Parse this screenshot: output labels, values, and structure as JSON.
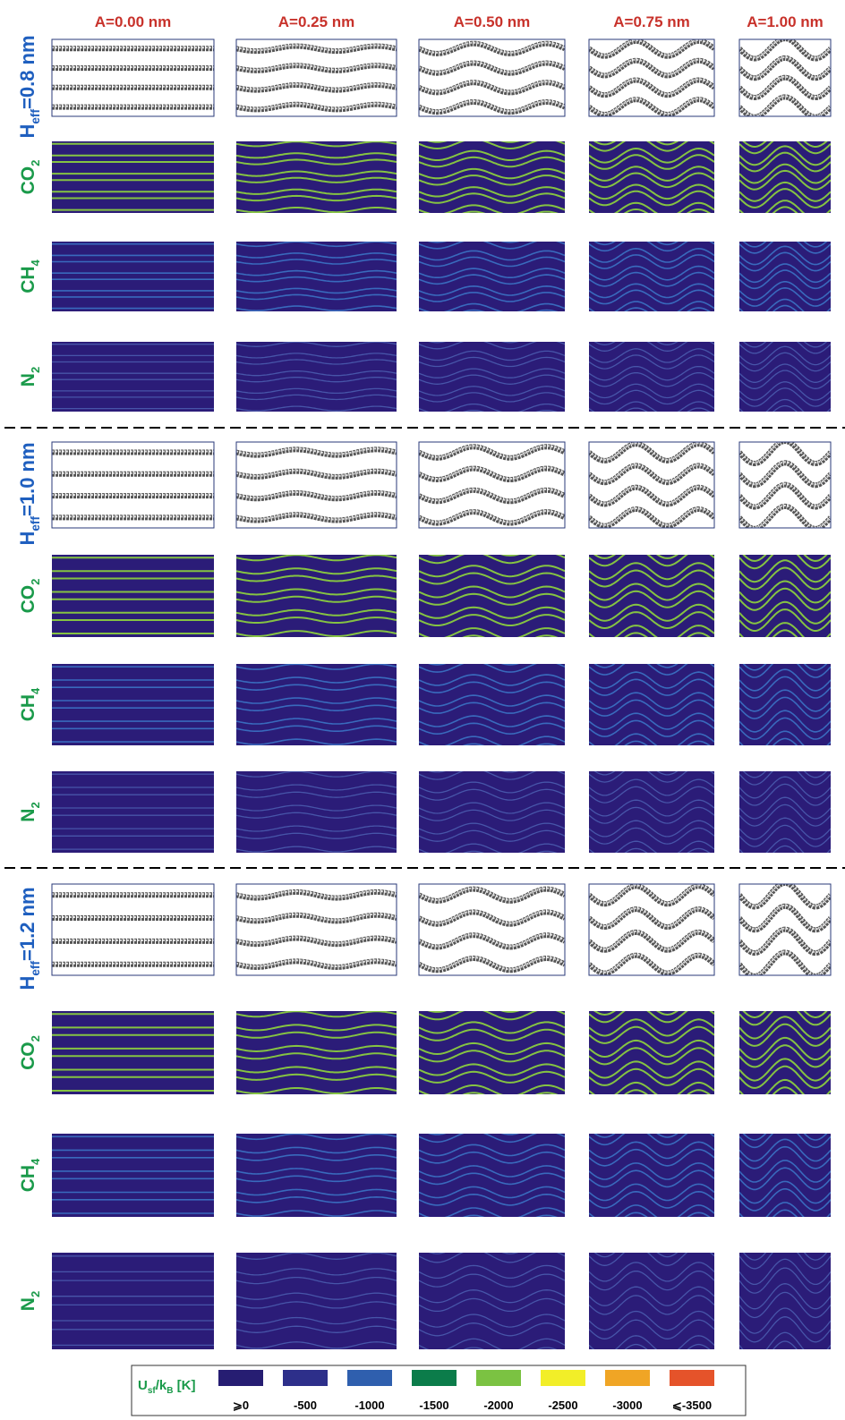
{
  "columns": [
    "A=0.00 nm",
    "A=0.25 nm",
    "A=0.50 nm",
    "A=0.75 nm",
    "A=1.00 nm"
  ],
  "groups": [
    {
      "label": {
        "main": "H",
        "sub": "eff",
        "rest": "=0.8 nm"
      },
      "rows": [
        {
          "main": "CO",
          "sub": "2"
        },
        {
          "main": "CH",
          "sub": "4"
        },
        {
          "main": "N",
          "sub": "2"
        }
      ]
    },
    {
      "label": {
        "main": "H",
        "sub": "eff",
        "rest": "=1.0 nm"
      },
      "rows": [
        {
          "main": "CO",
          "sub": "2"
        },
        {
          "main": "CH",
          "sub": "4"
        },
        {
          "main": "N",
          "sub": "2"
        }
      ]
    },
    {
      "label": {
        "main": "H",
        "sub": "eff",
        "rest": "=1.2 nm"
      },
      "rows": [
        {
          "main": "CO",
          "sub": "2"
        },
        {
          "main": "CH",
          "sub": "4"
        },
        {
          "main": "N",
          "sub": "2"
        }
      ]
    }
  ],
  "legend": {
    "title": {
      "main": "U",
      "sub": "sf",
      "mid": "/k",
      "sub2": "B",
      "rest": " [K]"
    },
    "items": [
      {
        "label": "⩾0",
        "color": "#261d72"
      },
      {
        "label": "-500",
        "color": "#2d2f8a"
      },
      {
        "label": "-1000",
        "color": "#2f5fae"
      },
      {
        "label": "-1500",
        "color": "#0b7c4a"
      },
      {
        "label": "-2000",
        "color": "#7bc242"
      },
      {
        "label": "-2500",
        "color": "#f2ee28"
      },
      {
        "label": "-3000",
        "color": "#f0a525"
      },
      {
        "label": "⩽-3500",
        "color": "#e5532a"
      }
    ]
  }
}
